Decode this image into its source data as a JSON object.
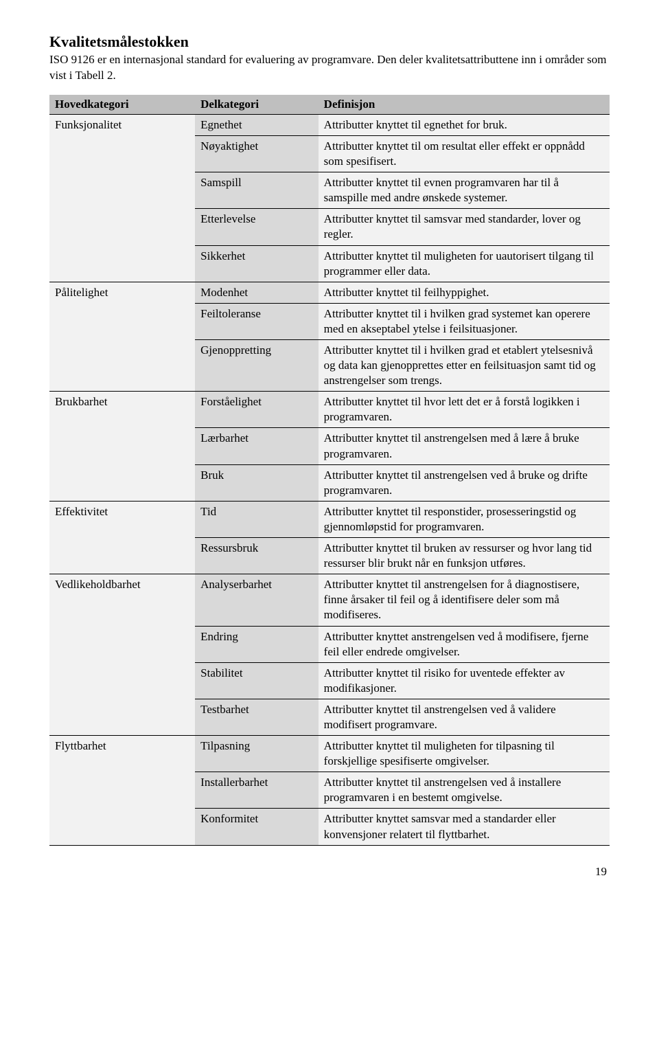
{
  "page": {
    "title": "Kvalitetsmålestokken",
    "intro": "ISO 9126 er en internasjonal standard for evaluering av programvare. Den deler kvalitetsattributtene inn i områder som vist i Tabell 2.",
    "page_number": "19"
  },
  "table": {
    "headers": {
      "col1": "Hovedkategori",
      "col2": "Delkategori",
      "col3": "Definisjon"
    },
    "colors": {
      "header_bg": "#bfbfbf",
      "maincat_bg": "#f2f2f2",
      "subcat_bg": "#d9d9d9",
      "def_bg": "#f2f2f2",
      "border": "#000000",
      "text": "#000000"
    },
    "column_widths_pct": [
      26,
      22,
      52
    ],
    "groups": [
      {
        "main": "Funksjonalitet",
        "rows": [
          {
            "sub": "Egnethet",
            "def": "Attributter knyttet til egnethet for bruk."
          },
          {
            "sub": "Nøyaktighet",
            "def": "Attributter knyttet til om resultat eller effekt er oppnådd som spesifisert."
          },
          {
            "sub": "Samspill",
            "def": "Attributter knyttet til evnen programvaren har til å samspille med andre ønskede systemer."
          },
          {
            "sub": "Etterlevelse",
            "def": "Attributter knyttet til samsvar med standarder, lover og regler."
          },
          {
            "sub": "Sikkerhet",
            "def": "Attributter knyttet til muligheten for uautorisert tilgang til programmer eller data."
          }
        ]
      },
      {
        "main": "Pålitelighet",
        "rows": [
          {
            "sub": "Modenhet",
            "def": "Attributter knyttet til feilhyppighet."
          },
          {
            "sub": "Feiltoleranse",
            "def": "Attributter knyttet til i hvilken grad systemet kan operere med en akseptabel ytelse i feilsituasjoner."
          },
          {
            "sub": "Gjenoppretting",
            "def": "Attributter knyttet til i hvilken grad et etablert ytelsesnivå og data kan gjenopprettes etter en feilsituasjon samt tid og anstrengelser som trengs."
          }
        ]
      },
      {
        "main": "Brukbarhet",
        "rows": [
          {
            "sub": "Forståelighet",
            "def": "Attributter knyttet til hvor lett det er å forstå logikken i programvaren."
          },
          {
            "sub": "Lærbarhet",
            "def": "Attributter knyttet til anstrengelsen med å lære å bruke programvaren."
          },
          {
            "sub": "Bruk",
            "def": "Attributter knyttet til anstrengelsen ved å bruke og drifte programvaren."
          }
        ]
      },
      {
        "main": "Effektivitet",
        "rows": [
          {
            "sub": "Tid",
            "def": "Attributter knyttet til responstider, prosesseringstid og gjennomløpstid for programvaren."
          },
          {
            "sub": "Ressursbruk",
            "def": "Attributter knyttet til bruken av ressurser og hvor lang tid ressurser blir brukt når en funksjon utføres."
          }
        ]
      },
      {
        "main": "Vedlikeholdbarhet",
        "rows": [
          {
            "sub": "Analyserbarhet",
            "def": "Attributter knyttet til anstrengelsen for å diagnostisere, finne årsaker til feil og å identifisere deler som må modifiseres."
          },
          {
            "sub": "Endring",
            "def": "Attributter knyttet anstrengelsen ved å modifisere, fjerne feil eller endrede omgivelser."
          },
          {
            "sub": "Stabilitet",
            "def": "Attributter knyttet til risiko for uventede effekter av modifikasjoner."
          },
          {
            "sub": "Testbarhet",
            "def": "Attributter knyttet til anstrengelsen ved å validere modifisert programvare."
          }
        ]
      },
      {
        "main": "Flyttbarhet",
        "rows": [
          {
            "sub": "Tilpasning",
            "def": "Attributter knyttet til muligheten for tilpasning til forskjellige spesifiserte omgivelser."
          },
          {
            "sub": "Installerbarhet",
            "def": "Attributter knyttet til anstrengelsen ved å installere programvaren i en bestemt omgivelse."
          },
          {
            "sub": "Konformitet",
            "def": "Attributter knyttet samsvar med a standarder eller konvensjoner relatert til flyttbarhet."
          }
        ]
      }
    ]
  }
}
